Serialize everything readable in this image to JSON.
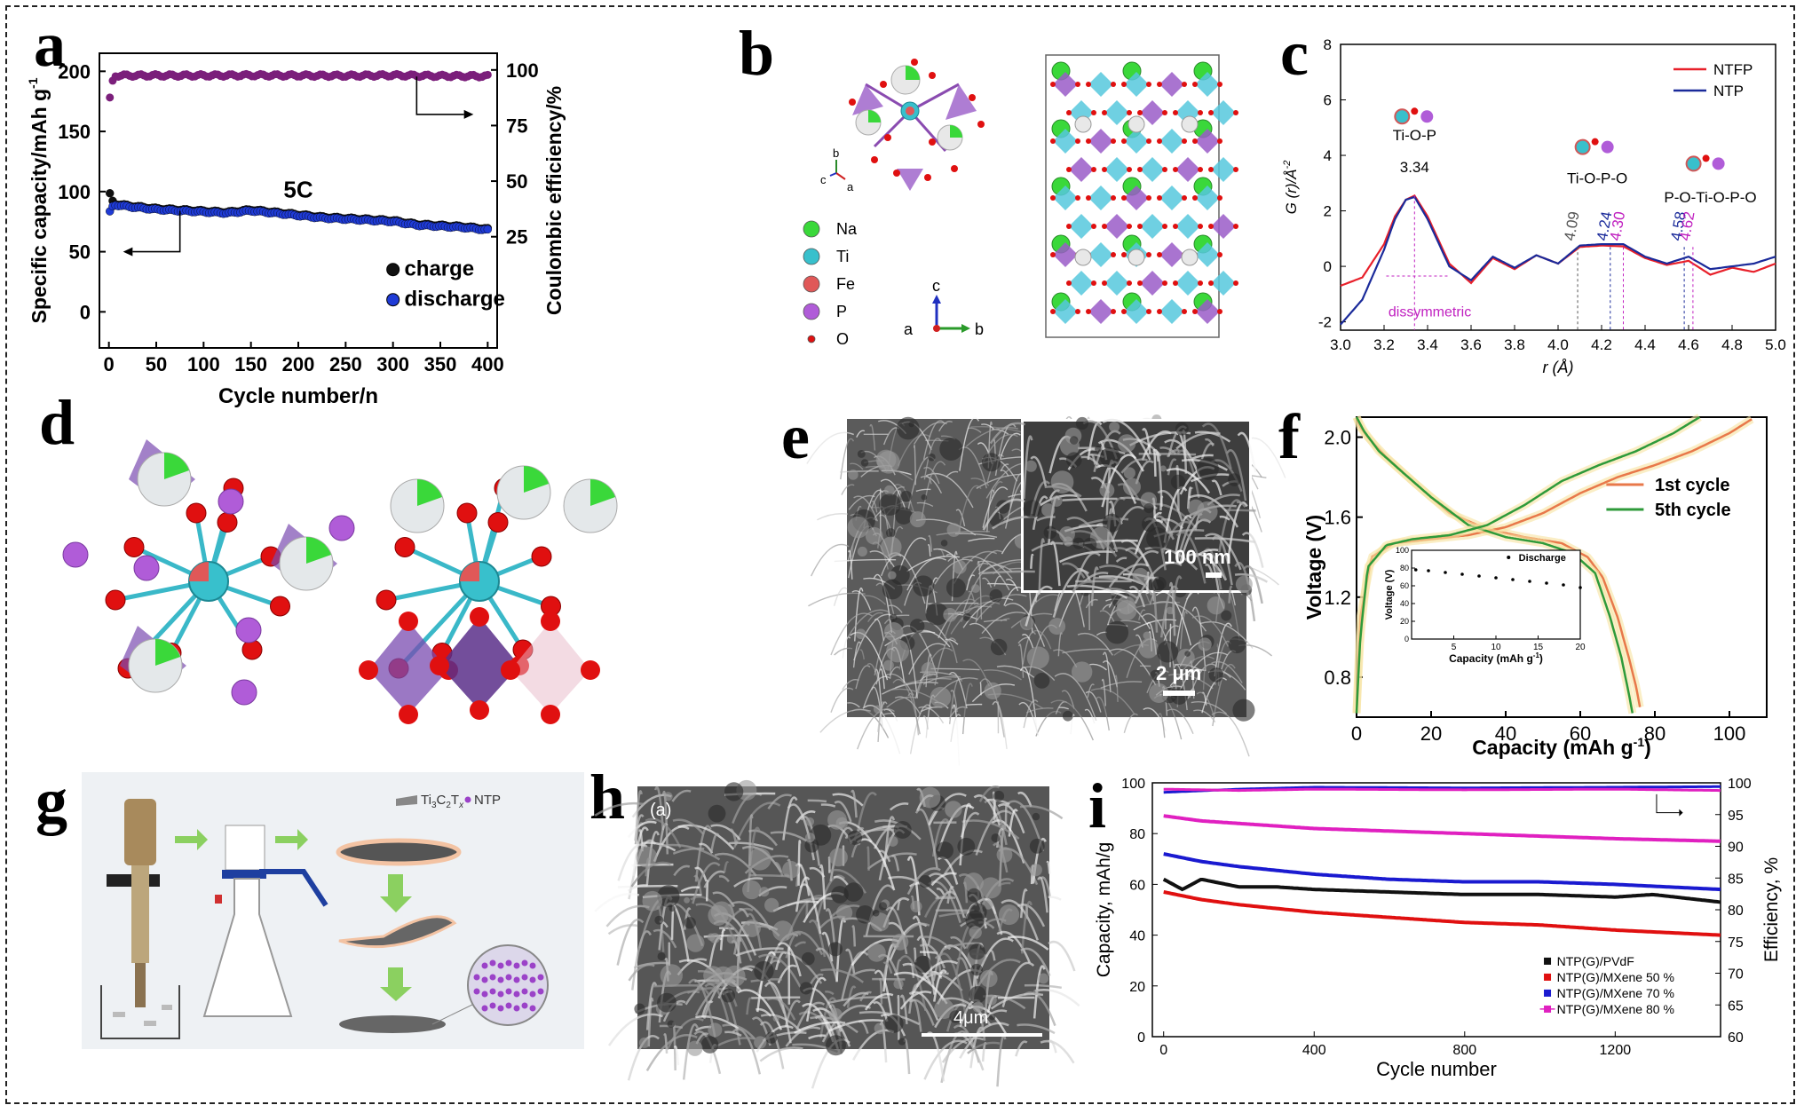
{
  "panel_letters": {
    "a": "a",
    "b": "b",
    "c": "c",
    "d": "d",
    "e": "e",
    "f": "f",
    "g": "g",
    "h": "h",
    "i": "i"
  },
  "chart_data": [
    {
      "panel": "a",
      "type": "scatter",
      "xlabel": "Cycle number/n",
      "ylabel": "Specific capacity/mAh g",
      "ylabel_sup": "-1",
      "y2label": "Coulombic efficiency/%",
      "xlim": [
        -10,
        410
      ],
      "ylim": [
        -30,
        215
      ],
      "y2lim": [
        -25,
        107.5
      ],
      "x_ticks": [
        0,
        50,
        100,
        150,
        200,
        250,
        300,
        350,
        400
      ],
      "y_ticks": [
        0,
        50,
        100,
        150,
        200
      ],
      "y2_ticks": [
        25,
        50,
        75,
        100
      ],
      "annotation": "5C",
      "legend": [
        "charge",
        "discharge"
      ],
      "series": [
        {
          "name": "charge",
          "color": "#111111",
          "x": [
            1,
            5,
            25,
            50,
            75,
            100,
            125,
            150,
            175,
            200,
            225,
            250,
            275,
            300,
            325,
            350,
            375,
            400
          ],
          "y": [
            98,
            90,
            88,
            86,
            85,
            84,
            83,
            85,
            83,
            81,
            79,
            78,
            77,
            76,
            73,
            72,
            71,
            69
          ]
        },
        {
          "name": "discharge",
          "color": "#1f3bd6",
          "x": [
            1,
            5,
            25,
            50,
            75,
            100,
            125,
            150,
            175,
            200,
            225,
            250,
            275,
            300,
            325,
            350,
            375,
            400
          ],
          "y": [
            83,
            89,
            87,
            85,
            84,
            83,
            82,
            84,
            82,
            80,
            78,
            77,
            76,
            75,
            72,
            71,
            70,
            68
          ]
        },
        {
          "name": "",
          "color": "#7b1f7b",
          "axis": "right",
          "x": [
            1,
            5,
            50,
            100,
            150,
            200,
            250,
            300,
            350,
            400
          ],
          "y": [
            87,
            97.5,
            97.5,
            97.5,
            97.6,
            97.5,
            97.4,
            97.6,
            97.3,
            97.2
          ]
        }
      ]
    },
    {
      "panel": "c",
      "type": "line",
      "xlabel": "r (Å)",
      "ylabel": "G (r)/Å",
      "ylabel_sup": "-2",
      "xlim": [
        3.0,
        5.0
      ],
      "ylim": [
        -2.3,
        8
      ],
      "x_ticks": [
        3.0,
        3.2,
        3.4,
        3.6,
        3.8,
        4.0,
        4.2,
        4.4,
        4.6,
        4.8,
        5.0
      ],
      "y_ticks": [
        -2,
        0,
        2,
        4,
        6,
        8
      ],
      "annotations": [
        "Ti-O-P",
        "3.34",
        "Ti-O-P-O",
        "P-O-Ti-O-P-O",
        "4.09",
        "4.24",
        "4.30",
        "4.58",
        "4.62",
        "dissymmetric"
      ],
      "series": [
        {
          "name": "NTFP",
          "color": "#e8202a",
          "x": [
            3.0,
            3.1,
            3.2,
            3.25,
            3.3,
            3.34,
            3.4,
            3.5,
            3.6,
            3.7,
            3.8,
            3.9,
            4.0,
            4.1,
            4.2,
            4.3,
            4.4,
            4.5,
            4.6,
            4.7,
            4.8,
            4.9,
            5.0
          ],
          "y": [
            -0.7,
            -0.4,
            0.8,
            1.8,
            2.4,
            2.55,
            1.8,
            0.1,
            -0.6,
            0.3,
            -0.1,
            0.4,
            0.1,
            0.7,
            0.75,
            0.72,
            0.3,
            0.05,
            0.2,
            -0.3,
            -0.05,
            -0.2,
            0.1
          ]
        },
        {
          "name": "NTP",
          "color": "#1a2a9a",
          "x": [
            3.0,
            3.1,
            3.2,
            3.25,
            3.3,
            3.34,
            3.4,
            3.5,
            3.6,
            3.7,
            3.8,
            3.9,
            4.0,
            4.1,
            4.2,
            4.3,
            4.4,
            4.5,
            4.6,
            4.7,
            4.8,
            4.9,
            5.0
          ],
          "y": [
            -2.1,
            -1.2,
            0.6,
            1.7,
            2.4,
            2.5,
            1.7,
            0.0,
            -0.5,
            0.35,
            -0.05,
            0.4,
            0.1,
            0.75,
            0.8,
            0.8,
            0.35,
            0.1,
            0.35,
            -0.1,
            0.0,
            0.1,
            0.35
          ]
        }
      ]
    },
    {
      "panel": "f",
      "type": "line",
      "xlabel": "Capacity (mAh g",
      "xlabel_sup": "-1",
      "xlabel_end": ")",
      "ylabel": "Voltage (V)",
      "xlim": [
        0,
        110
      ],
      "ylim": [
        0.6,
        2.1
      ],
      "x_ticks": [
        0,
        20,
        40,
        60,
        80,
        100
      ],
      "y_ticks": [
        0.8,
        1.2,
        1.6,
        2.0
      ],
      "legend": [
        "1st cycle",
        "5th cycle"
      ],
      "series": [
        {
          "name": "1st cycle",
          "color": "#e8784a",
          "x": [
            0,
            1,
            3,
            8,
            15,
            25,
            35,
            45,
            55,
            62,
            66,
            70,
            73,
            75,
            76
          ],
          "y": [
            2.1,
            2.05,
            2.0,
            1.9,
            1.78,
            1.62,
            1.54,
            1.5,
            1.47,
            1.4,
            1.3,
            1.1,
            0.9,
            0.75,
            0.65
          ]
        },
        {
          "name": "1st cycle charge",
          "color": "#e8784a",
          "x": [
            0,
            1,
            4,
            10,
            20,
            30,
            40,
            50,
            60,
            70,
            80,
            90,
            100,
            106
          ],
          "y": [
            0.62,
            1.1,
            1.4,
            1.47,
            1.49,
            1.51,
            1.55,
            1.62,
            1.72,
            1.8,
            1.86,
            1.93,
            2.02,
            2.09
          ]
        },
        {
          "name": "5th cycle",
          "color": "#2e9a3a",
          "x": [
            0,
            2,
            6,
            12,
            20,
            30,
            40,
            50,
            58,
            64,
            68,
            71,
            73,
            74
          ],
          "y": [
            2.1,
            2.03,
            1.93,
            1.83,
            1.7,
            1.56,
            1.5,
            1.47,
            1.42,
            1.32,
            1.1,
            0.9,
            0.72,
            0.62
          ]
        },
        {
          "name": "5th cycle charge",
          "color": "#2e9a3a",
          "x": [
            0,
            1,
            3,
            8,
            15,
            25,
            35,
            45,
            55,
            65,
            75,
            85,
            92
          ],
          "y": [
            0.62,
            1.0,
            1.35,
            1.46,
            1.49,
            1.51,
            1.56,
            1.66,
            1.78,
            1.86,
            1.93,
            2.02,
            2.1
          ]
        }
      ],
      "inset": {
        "xlabel": "Capacity (mAh g",
        "xlabel_sup": "-1",
        "xlabel_end": ")",
        "ylabel": "Voltage (V)",
        "xlim": [
          0,
          20
        ],
        "ylim": [
          0,
          100
        ],
        "x_ticks": [
          5,
          10,
          15,
          20
        ],
        "y_ticks": [
          0,
          20,
          40,
          60,
          80,
          100
        ],
        "legend": "Discharge",
        "x": [
          0.5,
          2,
          4,
          6,
          8,
          10,
          12,
          14,
          16,
          18,
          20
        ],
        "y": [
          78,
          77,
          75,
          73,
          71,
          69,
          67,
          65,
          63,
          61,
          58
        ]
      }
    },
    {
      "panel": "i",
      "type": "line",
      "xlabel": "Cycle number",
      "ylabel": "Capacity, mAh/g",
      "y2label": "Efficiency, %",
      "xlim": [
        -30,
        1480
      ],
      "ylim": [
        0,
        100
      ],
      "y2lim": [
        60,
        100
      ],
      "x_ticks": [
        0,
        400,
        800,
        1200
      ],
      "y_ticks": [
        0,
        20,
        40,
        60,
        80,
        100
      ],
      "y2_ticks": [
        60,
        65,
        70,
        75,
        80,
        85,
        90,
        95,
        100
      ],
      "legend": [
        "NTP(G)/PVdF",
        "NTP(G)/MXene 50 %",
        "NTP(G)/MXene 70 %",
        "NTP(G)/MXene 80 %"
      ],
      "series": [
        {
          "name": "NTP(G)/PVdF",
          "color": "#111111",
          "x": [
            0,
            50,
            100,
            200,
            300,
            400,
            600,
            800,
            1000,
            1200,
            1300,
            1480
          ],
          "y": [
            62,
            58,
            62,
            59,
            59,
            58,
            57,
            56,
            56,
            55,
            56,
            53
          ]
        },
        {
          "name": "NTP(G)/MXene 50 %",
          "color": "#e01010",
          "x": [
            0,
            100,
            200,
            400,
            600,
            800,
            1000,
            1200,
            1480
          ],
          "y": [
            57,
            54,
            52,
            49,
            47,
            45,
            44,
            42,
            40
          ]
        },
        {
          "name": "NTP(G)/MXene 70 %",
          "color": "#1a1ad0",
          "x": [
            0,
            100,
            200,
            400,
            600,
            800,
            1000,
            1200,
            1480
          ],
          "y": [
            72,
            69,
            67,
            64,
            62,
            61,
            61,
            60,
            58
          ]
        },
        {
          "name": "NTP(G)/MXene 80 %",
          "color": "#e020c0",
          "x": [
            0,
            100,
            200,
            400,
            600,
            800,
            1000,
            1200,
            1480
          ],
          "y": [
            87,
            85,
            84,
            82,
            81,
            80,
            79,
            78,
            77
          ]
        },
        {
          "name": "",
          "color": "#1a1ad0",
          "axis": "right",
          "x": [
            0,
            200,
            400,
            800,
            1200,
            1480
          ],
          "y": [
            98.5,
            99,
            99.3,
            99.2,
            99.3,
            99.4
          ]
        },
        {
          "name": "",
          "color": "#e020c0",
          "axis": "right",
          "x": [
            0,
            200,
            400,
            800,
            1200,
            1480
          ],
          "y": [
            99,
            98.8,
            99,
            98.9,
            99,
            98.8
          ]
        }
      ]
    }
  ],
  "panel_b": {
    "legend": [
      {
        "label": "Na",
        "color": "#3ad83a"
      },
      {
        "label": "Ti",
        "color": "#38c0cc"
      },
      {
        "label": "Fe",
        "color": "#e05858"
      },
      {
        "label": "P",
        "color": "#b05cd8"
      },
      {
        "label": "O",
        "color": "#e01010"
      }
    ],
    "axes_small": {
      "b": "b",
      "c": "c",
      "a": "a"
    },
    "axes_large": {
      "c": "c",
      "a": "a",
      "b": "b"
    }
  },
  "panel_e": {
    "scale_main": "2 μm",
    "scale_inset": "100 nm"
  },
  "panel_g": {
    "legend_mxene": "Ti",
    "legend_mxene_sub1": "3",
    "legend_mxene_mid": "C",
    "legend_mxene_sub2": "2",
    "legend_mxene_t": "T",
    "legend_mxene_sub3": "x",
    "legend_ntp": "NTP"
  },
  "panel_h": {
    "sublabel": "(a)",
    "scale": "4μm"
  }
}
